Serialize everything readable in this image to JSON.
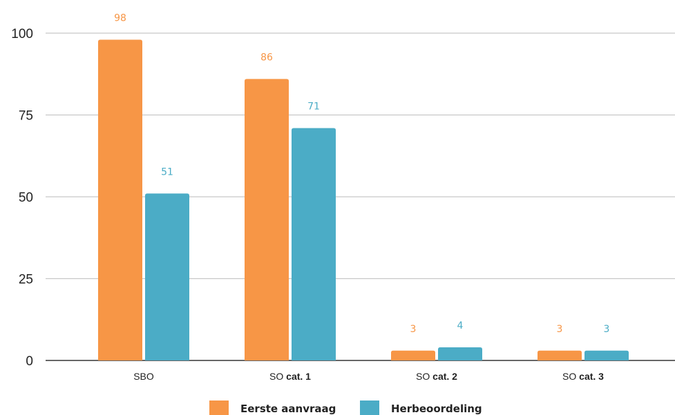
{
  "chart_data": {
    "type": "bar",
    "title": "",
    "xlabel": "",
    "ylabel": "",
    "ylim": [
      0,
      100
    ],
    "y_ticks": [
      "0",
      "25",
      "50",
      "75",
      "100"
    ],
    "categories": [
      {
        "prefix": "SBO",
        "bold": ""
      },
      {
        "prefix": "SO ",
        "bold": "cat. 1"
      },
      {
        "prefix": "SO ",
        "bold": "cat. 2"
      },
      {
        "prefix": "SO ",
        "bold": "cat. 3"
      }
    ],
    "series": [
      {
        "name": "Eerste aanvraag",
        "color": "#f79646",
        "values": [
          98,
          86,
          3,
          3
        ]
      },
      {
        "name": "Herbeoordeling",
        "color": "#4bacc6",
        "values": [
          51,
          71,
          4,
          3
        ]
      }
    ],
    "grid": true,
    "legend": "bottom-center"
  }
}
